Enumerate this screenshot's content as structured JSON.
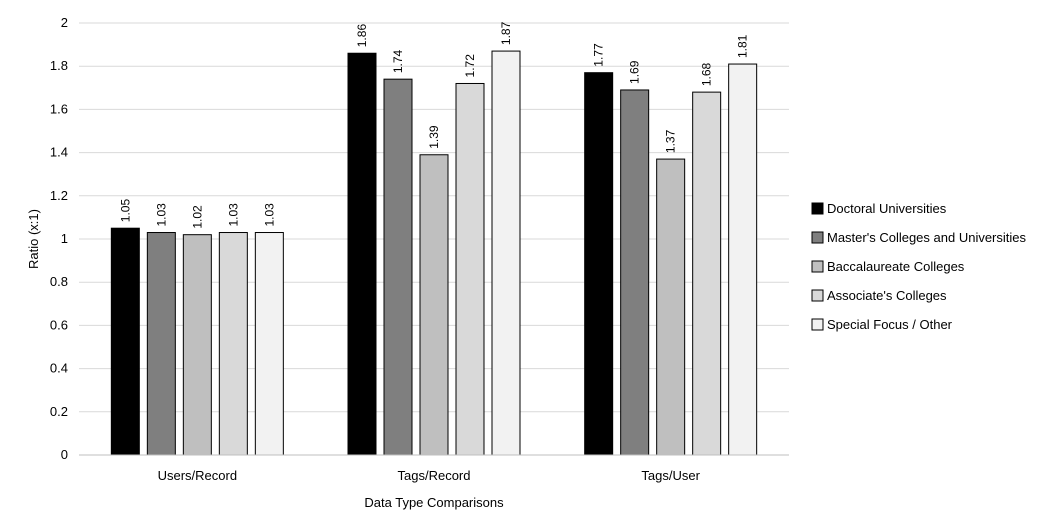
{
  "chart_data": {
    "type": "bar",
    "title": "",
    "xlabel": "Data Type Comparisons",
    "ylabel": "Ratio (x:1)",
    "ylim": [
      0,
      2
    ],
    "yticks": [
      "0",
      "0.2",
      "0.4",
      "0.6",
      "0.8",
      "1",
      "1.2",
      "1.4",
      "1.6",
      "1.8",
      "2"
    ],
    "grid": true,
    "legend_position": "right",
    "categories": [
      "Users/Record",
      "Tags/Record",
      "Tags/User"
    ],
    "series": [
      {
        "name": "Doctoral Universities",
        "color": "#000000",
        "values": [
          1.05,
          1.86,
          1.77
        ],
        "labels": [
          "1.05",
          "1.86",
          "1.77"
        ]
      },
      {
        "name": "Master's Colleges and Universities",
        "color": "#7f7f7f",
        "values": [
          1.03,
          1.74,
          1.69
        ],
        "labels": [
          "1.03",
          "1.74",
          "1.69"
        ]
      },
      {
        "name": "Baccalaureate Colleges",
        "color": "#bfbfbf",
        "values": [
          1.02,
          1.39,
          1.37
        ],
        "labels": [
          "1.02",
          "1.39",
          "1.37"
        ]
      },
      {
        "name": "Associate's Colleges",
        "color": "#d9d9d9",
        "values": [
          1.03,
          1.72,
          1.68
        ],
        "labels": [
          "1.03",
          "1.72",
          "1.68"
        ]
      },
      {
        "name": "Special Focus / Other",
        "color": "#f2f2f2",
        "values": [
          1.03,
          1.87,
          1.81
        ],
        "labels": [
          "1.03",
          "1.87",
          "1.81"
        ]
      }
    ]
  }
}
